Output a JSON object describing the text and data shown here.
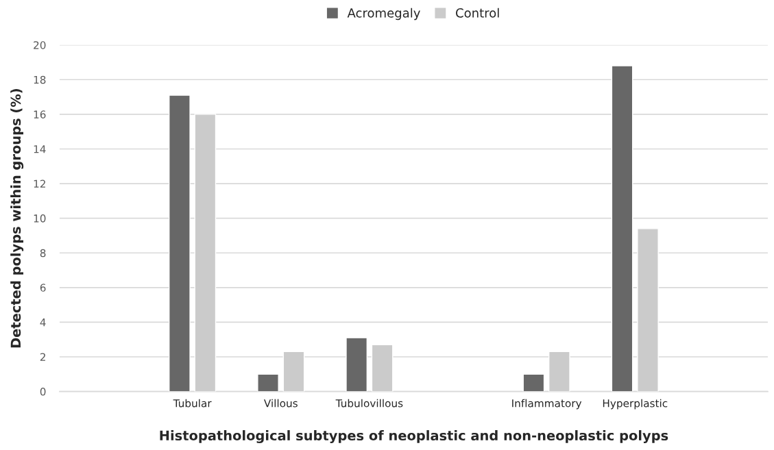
{
  "chart_data": {
    "type": "bar",
    "xlabel": "Histopathological subtypes of neoplastic and non-neoplastic polyps",
    "ylabel": "Detected polyps within groups (%)",
    "categories": [
      null,
      "Tubular",
      "Villous",
      "Tubulovillous",
      null,
      "Inflammatory",
      "Hyperplastic",
      null
    ],
    "series": [
      {
        "name": "Acromegaly",
        "color": "#676767",
        "values": [
          null,
          17.1,
          1.0,
          3.1,
          null,
          1.0,
          18.8,
          null
        ]
      },
      {
        "name": "Control",
        "color": "#cbcbcb",
        "values": [
          null,
          16.0,
          2.3,
          2.7,
          null,
          2.3,
          9.4,
          null
        ]
      }
    ],
    "ylim": [
      0,
      20
    ],
    "yticks": [
      0,
      2,
      4,
      6,
      8,
      10,
      12,
      14,
      16,
      18,
      20
    ],
    "grid": "y",
    "legend": "top"
  }
}
